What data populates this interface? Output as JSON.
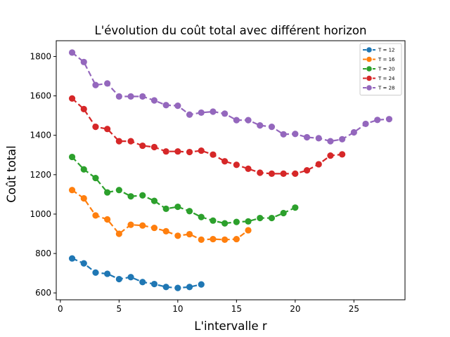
{
  "chart_data": {
    "type": "line",
    "title": "L'évolution du coût total avec différent horizon",
    "xlabel": "L'intervalle r",
    "ylabel": "Coût total",
    "xlim": [
      -0.35,
      29.35
    ],
    "ylim": [
      565,
      1880
    ],
    "xticks": [
      0,
      5,
      10,
      15,
      20,
      25
    ],
    "yticks": [
      600,
      800,
      1000,
      1200,
      1400,
      1600,
      1800
    ],
    "grid": false,
    "legend_position": "top-right",
    "line_style": "dashed",
    "marker": "circle",
    "series": [
      {
        "name": "T = 12",
        "color": "#1f77b4",
        "x": [
          1,
          2,
          3,
          4,
          5,
          6,
          7,
          8,
          9,
          10,
          11,
          12
        ],
        "y": [
          775,
          750,
          703,
          697,
          670,
          680,
          655,
          645,
          630,
          625,
          630,
          643
        ]
      },
      {
        "name": "T = 16",
        "color": "#ff7f0e",
        "x": [
          1,
          2,
          3,
          4,
          5,
          6,
          7,
          8,
          9,
          10,
          11,
          12,
          13,
          14,
          15,
          16
        ],
        "y": [
          1122,
          1080,
          993,
          973,
          900,
          946,
          942,
          930,
          913,
          890,
          898,
          870,
          873,
          870,
          873,
          918
        ]
      },
      {
        "name": "T = 20",
        "color": "#2ca02c",
        "x": [
          1,
          2,
          3,
          4,
          5,
          6,
          7,
          8,
          9,
          10,
          11,
          12,
          13,
          14,
          15,
          16,
          17,
          18,
          19,
          20
        ],
        "y": [
          1290,
          1227,
          1183,
          1110,
          1122,
          1090,
          1095,
          1067,
          1027,
          1037,
          1015,
          985,
          967,
          953,
          960,
          963,
          980,
          980,
          1005,
          1033
        ]
      },
      {
        "name": "T = 24",
        "color": "#d62728",
        "x": [
          1,
          2,
          3,
          4,
          5,
          6,
          7,
          8,
          9,
          10,
          11,
          12,
          13,
          14,
          15,
          16,
          17,
          18,
          19,
          20,
          21,
          22,
          23,
          24
        ],
        "y": [
          1587,
          1533,
          1443,
          1432,
          1370,
          1370,
          1347,
          1340,
          1318,
          1318,
          1315,
          1322,
          1302,
          1268,
          1250,
          1230,
          1210,
          1205,
          1205,
          1205,
          1222,
          1253,
          1297,
          1303
        ]
      },
      {
        "name": "T = 28",
        "color": "#9467bd",
        "x": [
          1,
          2,
          3,
          4,
          5,
          6,
          7,
          8,
          9,
          10,
          11,
          12,
          13,
          14,
          15,
          16,
          17,
          18,
          19,
          20,
          21,
          22,
          23,
          24,
          25,
          26,
          27,
          28
        ],
        "y": [
          1820,
          1772,
          1655,
          1663,
          1597,
          1597,
          1597,
          1577,
          1553,
          1550,
          1505,
          1515,
          1520,
          1510,
          1477,
          1477,
          1450,
          1443,
          1405,
          1407,
          1390,
          1385,
          1370,
          1380,
          1415,
          1458,
          1478,
          1482
        ]
      }
    ]
  }
}
